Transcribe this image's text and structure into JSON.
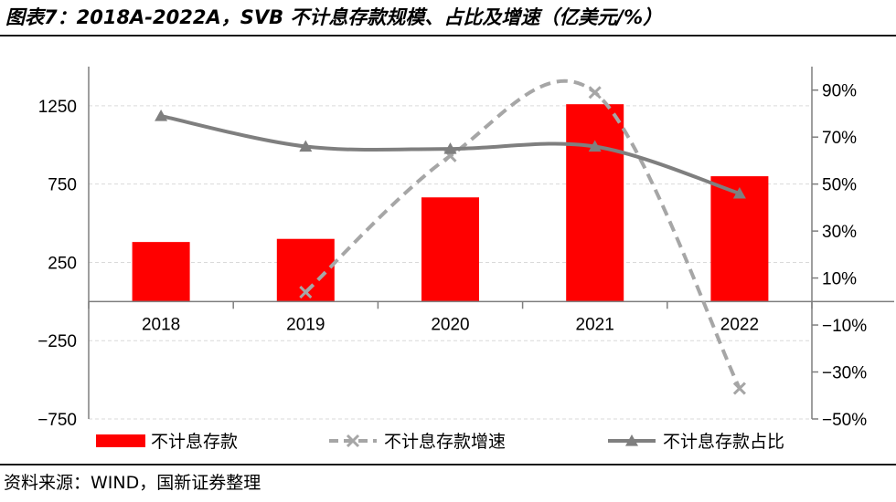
{
  "title": "图表7：2018A-2022A，SVB 不计息存款规模、占比及增速（亿美元/%）",
  "source": "资料来源：WIND，国新证券整理",
  "colors": {
    "bar": "#ff0000",
    "growth_line": "#a6a6a6",
    "share_line": "#7f7f7f",
    "axis": "#7f7f7f",
    "grid": "#d9d9d9"
  },
  "chart_data": {
    "type": "bar",
    "categories": [
      "2018",
      "2019",
      "2020",
      "2021",
      "2022"
    ],
    "ylim_left": [
      -750,
      1500
    ],
    "yticks_left": [
      {
        "value": 1250,
        "label": "1250"
      },
      {
        "value": 750,
        "label": "750"
      },
      {
        "value": 250,
        "label": "250"
      },
      {
        "value": -250,
        "label": "−250"
      },
      {
        "value": -750,
        "label": "−750"
      }
    ],
    "ylim_right": [
      -50,
      100
    ],
    "yticks_right": [
      {
        "value": 90,
        "label": "90%"
      },
      {
        "value": 70,
        "label": "70%"
      },
      {
        "value": 50,
        "label": "50%"
      },
      {
        "value": 30,
        "label": "30%"
      },
      {
        "value": 10,
        "label": "10%"
      },
      {
        "value": -10,
        "label": "−10%"
      },
      {
        "value": -30,
        "label": "−30%"
      },
      {
        "value": -50,
        "label": "−50%"
      }
    ],
    "series": [
      {
        "name": "不计息存款",
        "type": "bar",
        "axis": "left",
        "values": [
          380,
          400,
          665,
          1260,
          800
        ]
      },
      {
        "name": "不计息存款增速",
        "type": "line",
        "style": "dashed",
        "marker": "x",
        "axis": "right",
        "values": [
          null,
          4,
          62,
          89,
          -37
        ]
      },
      {
        "name": "不计息存款占比",
        "type": "line",
        "style": "solid",
        "marker": "triangle",
        "axis": "right",
        "values": [
          79,
          66,
          65,
          66,
          46
        ]
      }
    ],
    "legend": [
      {
        "label": "不计息存款",
        "symbol": "bar"
      },
      {
        "label": "不计息存款增速",
        "symbol": "dashed-x"
      },
      {
        "label": "不计息存款占比",
        "symbol": "solid-triangle"
      }
    ],
    "legend_position": "bottom",
    "grid": true
  }
}
